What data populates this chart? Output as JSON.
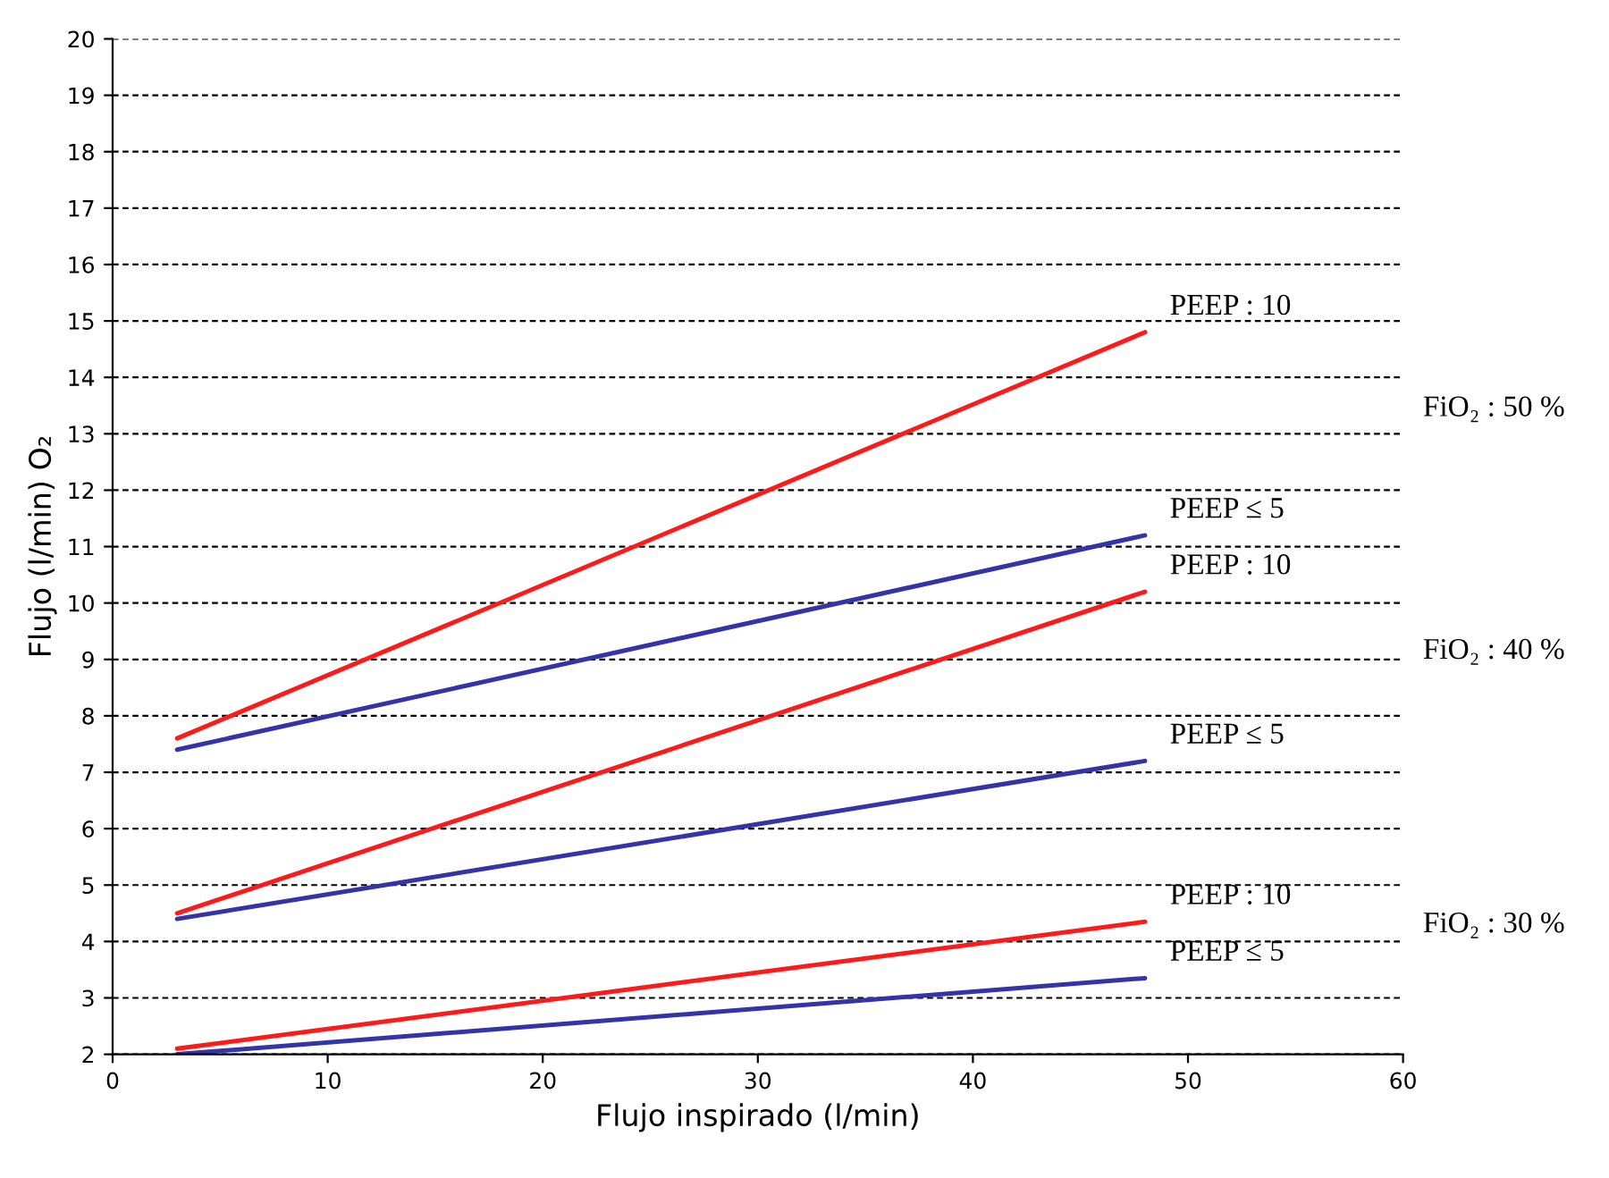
{
  "chart_data": {
    "type": "line",
    "xlabel": "Flujo inspirado (l/min)",
    "ylabel": "Flujo (l/min) O₂",
    "xlim": [
      0,
      60
    ],
    "xticks": [
      0,
      10,
      20,
      30,
      40,
      50,
      60
    ],
    "ylim": [
      2,
      20
    ],
    "yticks": [
      2,
      3,
      4,
      5,
      6,
      7,
      8,
      9,
      10,
      11,
      12,
      13,
      14,
      15,
      16,
      17,
      18,
      19,
      20
    ],
    "x": [
      3,
      48
    ],
    "grid": "y",
    "line_style": "solid",
    "marker": "none",
    "legend": false,
    "annotations": [
      "FiO₂ : 50 %",
      "FiO₂ : 40 %",
      "FiO₂ : 30 %"
    ],
    "series": [
      {
        "name": "PEEP : 10",
        "color": "#ff1a1a",
        "values": [
          7.6,
          14.8
        ]
      },
      {
        "name": "PEEP ≤ 5",
        "color": "#3333aa",
        "values": [
          7.4,
          11.2
        ]
      },
      {
        "name": "PEEP : 10",
        "color": "#ff1a1a",
        "values": [
          4.5,
          10.2
        ]
      },
      {
        "name": "PEEP ≤ 5",
        "color": "#3333aa",
        "values": [
          4.4,
          7.2
        ]
      },
      {
        "name": "PEEP : 10",
        "color": "#ff1a1a",
        "values": [
          2.1,
          4.35
        ]
      },
      {
        "name": "PEEP ≤ 5",
        "color": "#3333aa",
        "values": [
          2.0,
          3.35
        ]
      }
    ]
  }
}
